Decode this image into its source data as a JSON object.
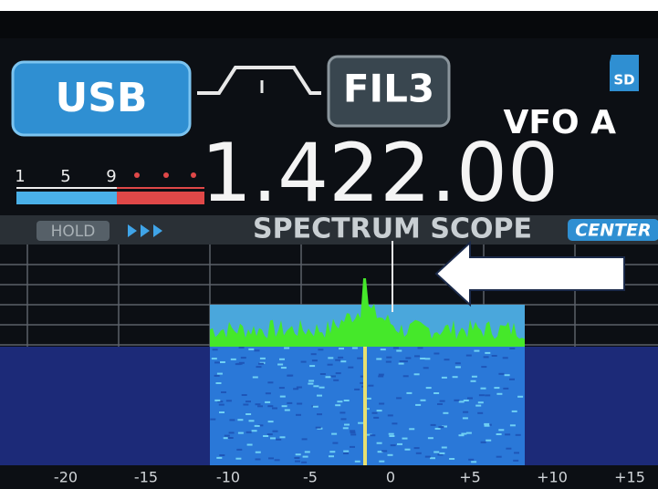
{
  "mode": "USB",
  "filter": "FIL3",
  "vfo": "VFO A",
  "sd": "SD",
  "frequency": "1.422.00",
  "meter": {
    "labels": [
      "1",
      "5",
      "9"
    ]
  },
  "scope": {
    "hold": "HOLD",
    "title": "SPECTRUM SCOPE",
    "center": "CENTER",
    "axis_labels": [
      "-20",
      "-15",
      "-10",
      "-5",
      "0",
      "+5",
      "+10",
      "+15"
    ]
  }
}
